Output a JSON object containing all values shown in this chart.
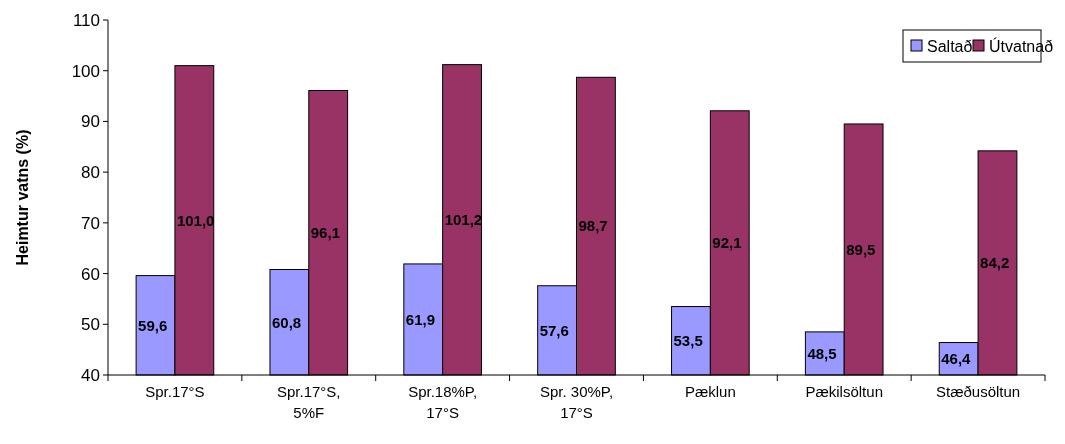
{
  "chart_data": {
    "type": "bar",
    "ylabel": "Heimtur vatns (%)",
    "categories": [
      "Spr.17°S",
      "Spr.17°S, 5%F",
      "Spr.18%P, 17°S",
      "Spr. 30%P, 17°S",
      "Pæklun",
      "Pækilsöltun",
      "Stæðusöltun"
    ],
    "series": [
      {
        "name": "Saltað",
        "color": "#9999ff",
        "values": [
          59.6,
          60.8,
          61.9,
          57.6,
          53.5,
          48.5,
          46.4
        ],
        "value_labels": [
          "59,6",
          "60,8",
          "61,9",
          "57,6",
          "53,5",
          "48,5",
          "46,4"
        ]
      },
      {
        "name": "Útvatnað",
        "color": "#993366",
        "values": [
          101.0,
          96.1,
          101.2,
          98.7,
          92.1,
          89.5,
          84.2
        ],
        "value_labels": [
          "101,0",
          "96,1",
          "101,2",
          "98,7",
          "92,1",
          "89,5",
          "84,2"
        ]
      }
    ],
    "ylim": [
      40,
      110
    ],
    "yticks": [
      40,
      50,
      60,
      70,
      80,
      90,
      100,
      110
    ],
    "legend": "top right"
  }
}
